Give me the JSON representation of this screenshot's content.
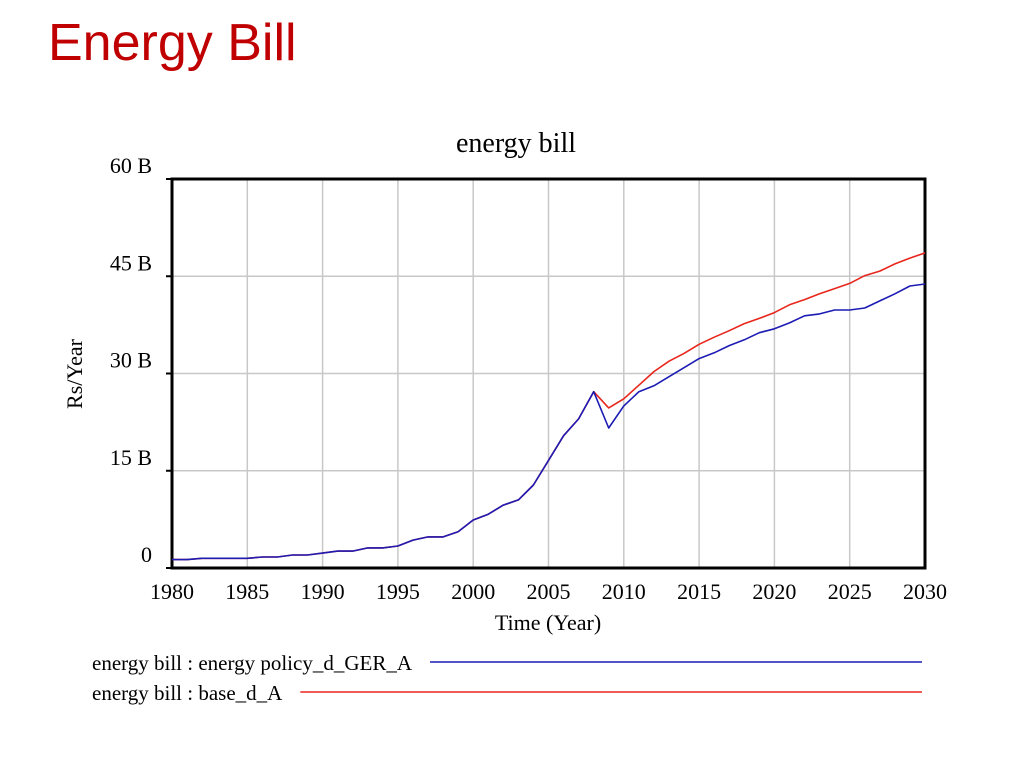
{
  "slide": {
    "title": "Energy Bill"
  },
  "colors": {
    "title": "#c00000",
    "series_policy": "#1c1cb4",
    "series_base": "#e8261c",
    "grid": "#c8c8c8"
  },
  "chart_data": {
    "type": "line",
    "title": "energy bill",
    "xlabel": "Time (Year)",
    "ylabel": "Rs/Year",
    "xlim": [
      1980,
      2030
    ],
    "ylim": [
      0,
      60
    ],
    "x_ticks": [
      1980,
      1985,
      1990,
      1995,
      2000,
      2005,
      2010,
      2015,
      2020,
      2025,
      2030
    ],
    "x_tick_labels": [
      "1980",
      "1985",
      "1990",
      "1995",
      "2000",
      "2005",
      "2010",
      "2015",
      "2020",
      "2025",
      "2030"
    ],
    "y_ticks": [
      0,
      15,
      30,
      45,
      60
    ],
    "y_tick_labels": [
      "0",
      "15 B",
      "30 B",
      "45 B",
      "60 B"
    ],
    "y_unit": "B",
    "grid": true,
    "legend_position": "below",
    "x": [
      1980,
      1981,
      1982,
      1983,
      1984,
      1985,
      1986,
      1987,
      1988,
      1989,
      1990,
      1991,
      1992,
      1993,
      1994,
      1995,
      1996,
      1997,
      1998,
      1999,
      2000,
      2001,
      2002,
      2003,
      2004,
      2005,
      2006,
      2007,
      2008,
      2009,
      2010,
      2011,
      2012,
      2013,
      2014,
      2015,
      2016,
      2017,
      2018,
      2019,
      2020,
      2021,
      2022,
      2023,
      2024,
      2025,
      2026,
      2027,
      2028,
      2029,
      2030
    ],
    "series": [
      {
        "name": "energy bill : energy policy_d_GER_A",
        "color": "#1c1cb4",
        "values": [
          1.3,
          1.3,
          1.5,
          1.5,
          1.5,
          1.5,
          1.7,
          1.7,
          2.0,
          2.0,
          2.3,
          2.6,
          2.6,
          3.1,
          3.1,
          3.4,
          4.3,
          4.8,
          4.8,
          5.6,
          7.4,
          8.3,
          9.7,
          10.5,
          12.8,
          16.6,
          20.4,
          23.0,
          27.2,
          21.6,
          25.0,
          27.2,
          28.1,
          29.5,
          30.9,
          32.3,
          33.2,
          34.3,
          35.2,
          36.3,
          36.9,
          37.8,
          38.9,
          39.2,
          39.8,
          39.8,
          40.1,
          41.2,
          42.3,
          43.5,
          43.8
        ]
      },
      {
        "name": "energy bill : base_d_A",
        "color": "#e8261c",
        "values": [
          1.3,
          1.3,
          1.5,
          1.5,
          1.5,
          1.5,
          1.7,
          1.7,
          2.0,
          2.0,
          2.3,
          2.6,
          2.6,
          3.1,
          3.1,
          3.4,
          4.3,
          4.8,
          4.8,
          5.6,
          7.4,
          8.3,
          9.7,
          10.5,
          12.8,
          16.6,
          20.4,
          23.0,
          27.2,
          24.7,
          26.1,
          28.2,
          30.3,
          31.9,
          33.1,
          34.5,
          35.6,
          36.6,
          37.7,
          38.5,
          39.4,
          40.6,
          41.4,
          42.3,
          43.1,
          43.9,
          45.1,
          45.8,
          46.9,
          47.8,
          48.6
        ]
      }
    ]
  }
}
